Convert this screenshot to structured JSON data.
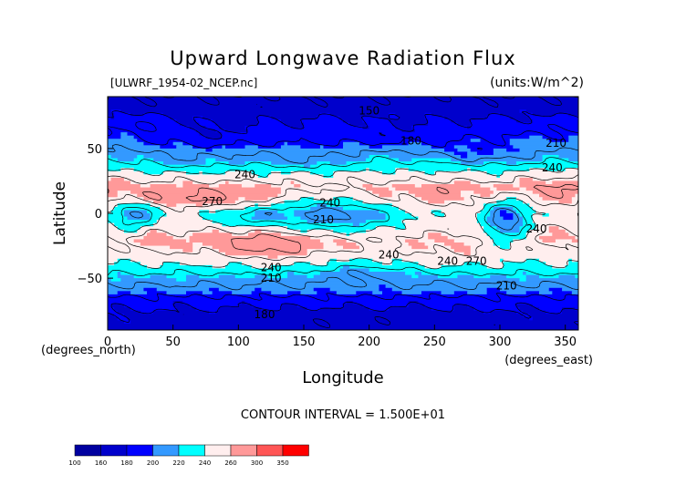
{
  "chart_data": {
    "type": "heatmap",
    "title": "Upward Longwave Radiation Flux",
    "subtitle_left": "[ULWRF_1954-02_NCEP.nc]",
    "subtitle_right": "(units:W/m^2)",
    "xlabel": "Longitude",
    "ylabel": "Latitude",
    "x_unit_label": "(degrees_east)",
    "y_unit_label": "(degrees_north)",
    "xlim": [
      0,
      360
    ],
    "ylim": [
      -90,
      90
    ],
    "x_ticks": [
      0,
      50,
      100,
      150,
      200,
      250,
      300,
      350
    ],
    "y_ticks": [
      -50,
      0,
      50
    ],
    "contour_interval_text": "CONTOUR INTERVAL = 1.500E+01",
    "contour_labels": [
      {
        "text": "150",
        "lon": 200,
        "lat": 79
      },
      {
        "text": "180",
        "lon": 232,
        "lat": 56
      },
      {
        "text": "210",
        "lon": 343,
        "lat": 54
      },
      {
        "text": "240",
        "lon": 105,
        "lat": 30
      },
      {
        "text": "240",
        "lon": 340,
        "lat": 35
      },
      {
        "text": "270",
        "lon": 80,
        "lat": 9
      },
      {
        "text": "240",
        "lon": 170,
        "lat": 8
      },
      {
        "text": "210",
        "lon": 165,
        "lat": -5
      },
      {
        "text": "240",
        "lon": 328,
        "lat": -12
      },
      {
        "text": "240",
        "lon": 125,
        "lat": -42
      },
      {
        "text": "240",
        "lon": 215,
        "lat": -32
      },
      {
        "text": "240",
        "lon": 260,
        "lat": -37
      },
      {
        "text": "270",
        "lon": 282,
        "lat": -37
      },
      {
        "text": "210",
        "lon": 125,
        "lat": -50
      },
      {
        "text": "210",
        "lon": 305,
        "lat": -56
      },
      {
        "text": "180",
        "lon": 120,
        "lat": -78
      }
    ],
    "colorbar": {
      "levels": [
        100,
        160,
        180,
        200,
        220,
        240,
        260,
        300,
        350
      ],
      "colors": [
        "#0000a0",
        "#0000cc",
        "#0000ff",
        "#3399ff",
        "#00ffff",
        "#ffeeee",
        "#ff9999",
        "#ff5555",
        "#ff0000"
      ]
    },
    "fields": {
      "base": [
        [
          -90,
          172
        ],
        [
          -80,
          176
        ],
        [
          -70,
          185
        ],
        [
          -60,
          202
        ],
        [
          -50,
          218
        ],
        [
          -40,
          238
        ],
        [
          -30,
          246
        ],
        [
          -20,
          254
        ],
        [
          -10,
          249
        ],
        [
          0,
          246
        ],
        [
          10,
          256
        ],
        [
          20,
          262
        ],
        [
          30,
          245
        ],
        [
          40,
          228
        ],
        [
          50,
          212
        ],
        [
          60,
          198
        ],
        [
          70,
          186
        ],
        [
          80,
          174
        ],
        [
          90,
          166
        ]
      ],
      "features": [
        {
          "lon": 85,
          "lat": 12,
          "slon": 35,
          "slat": 5,
          "amp": 15
        },
        {
          "lon": 25,
          "lat": 11,
          "slon": 18,
          "slat": 5,
          "amp": 12
        },
        {
          "lon": 342,
          "lat": 20,
          "slon": 25,
          "slat": 8,
          "amp": 10
        },
        {
          "lon": 260,
          "lat": 14,
          "slon": 30,
          "slat": 7,
          "amp": 6
        },
        {
          "lon": 20,
          "lat": 0,
          "slon": 12,
          "slat": 9,
          "amp": -40
        },
        {
          "lon": 305,
          "lat": -5,
          "slon": 12,
          "slat": 12,
          "amp": -50
        },
        {
          "lon": 165,
          "lat": 0,
          "slon": 30,
          "slat": 10,
          "amp": -35
        },
        {
          "lon": 110,
          "lat": -2,
          "slon": 20,
          "slat": 6,
          "amp": -22
        },
        {
          "lon": 200,
          "lat": -3,
          "slon": 25,
          "slat": 6,
          "amp": -15
        },
        {
          "lon": 128,
          "lat": -25,
          "slon": 22,
          "slat": 8,
          "amp": 28
        },
        {
          "lon": 80,
          "lat": -25,
          "slon": 25,
          "slat": 8,
          "amp": 12
        },
        {
          "lon": 35,
          "lat": -22,
          "slon": 12,
          "slat": 8,
          "amp": 12
        },
        {
          "lon": 258,
          "lat": -28,
          "slon": 28,
          "slat": 8,
          "amp": 12
        },
        {
          "lon": 345,
          "lat": -20,
          "slon": 18,
          "slat": 10,
          "amp": 8
        },
        {
          "lon": 175,
          "lat": -25,
          "slon": 15,
          "slat": 5,
          "amp": 10
        },
        {
          "lon": 195,
          "lat": -45,
          "slon": 25,
          "slat": 5,
          "amp": -15
        },
        {
          "lon": 150,
          "lat": 40,
          "slon": 25,
          "slat": 5,
          "amp": -15
        },
        {
          "lon": 60,
          "lat": 40,
          "slon": 25,
          "slat": 5,
          "amp": -12
        },
        {
          "lon": 290,
          "lat": 45,
          "slon": 30,
          "slat": 6,
          "amp": -18
        },
        {
          "lon": 75,
          "lat": 60,
          "slon": 40,
          "slat": 10,
          "amp": -18
        },
        {
          "lon": 230,
          "lat": 60,
          "slon": 40,
          "slat": 8,
          "amp": -12
        },
        {
          "lon": 160,
          "lat": 55,
          "slon": 30,
          "slat": 8,
          "amp": -8
        },
        {
          "lon": 30,
          "lat": 68,
          "slon": 25,
          "slat": 6,
          "amp": 12
        },
        {
          "lon": 180,
          "lat": -80,
          "slon": 80,
          "slat": 6,
          "amp": -6
        }
      ]
    }
  }
}
